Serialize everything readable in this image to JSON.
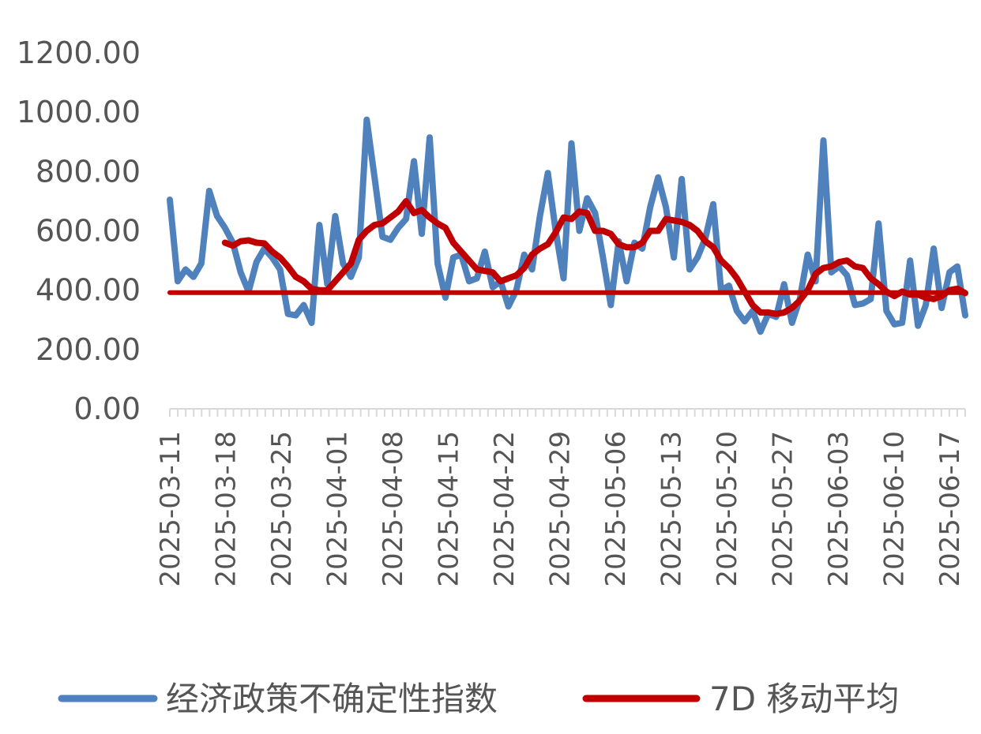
{
  "chart_data": {
    "type": "line",
    "title": "",
    "xlabel": "",
    "ylabel": "",
    "ylim": [
      0,
      1200
    ],
    "y_ticks": [
      "0.00",
      "200.00",
      "400.00",
      "600.00",
      "800.00",
      "1000.00",
      "1200.00"
    ],
    "x_ticks": [
      "2025-03-11",
      "2025-03-18",
      "2025-03-25",
      "2025-04-01",
      "2025-04-08",
      "2025-04-15",
      "2025-04-22",
      "2025-04-29",
      "2025-05-06",
      "2025-05-13",
      "2025-05-20",
      "2025-05-27",
      "2025-06-03",
      "2025-06-10",
      "2025-06-17"
    ],
    "x_start": "2025-03-11",
    "x_end": "2025-06-19",
    "grid": false,
    "legend_position": "bottom",
    "series": [
      {
        "name": "经济政策不确定性指数",
        "color": "#4F81BD",
        "values": [
          705,
          430,
          470,
          445,
          490,
          735,
          650,
          610,
          560,
          460,
          395,
          495,
          540,
          510,
          470,
          320,
          315,
          350,
          290,
          620,
          420,
          650,
          490,
          445,
          510,
          975,
          780,
          580,
          570,
          610,
          640,
          835,
          590,
          915,
          490,
          375,
          510,
          520,
          430,
          440,
          530,
          410,
          430,
          345,
          400,
          520,
          470,
          650,
          795,
          600,
          440,
          895,
          600,
          710,
          660,
          510,
          350,
          565,
          430,
          560,
          540,
          680,
          780,
          680,
          510,
          775,
          470,
          510,
          575,
          690,
          400,
          415,
          330,
          295,
          330,
          260,
          320,
          310,
          420,
          290,
          370,
          520,
          430,
          905,
          460,
          480,
          450,
          350,
          355,
          370,
          625,
          330,
          285,
          290,
          500,
          280,
          350,
          540,
          340,
          460,
          480,
          315
        ]
      },
      {
        "name": "7D 移动平均",
        "color": "#C00000",
        "values": [
          null,
          null,
          null,
          null,
          null,
          null,
          null,
          560,
          550,
          565,
          568,
          560,
          558,
          530,
          510,
          480,
          445,
          430,
          405,
          400,
          400,
          430,
          460,
          490,
          570,
          600,
          620,
          625,
          645,
          665,
          700,
          660,
          670,
          645,
          625,
          610,
          560,
          530,
          500,
          470,
          465,
          460,
          430,
          440,
          450,
          475,
          520,
          540,
          555,
          595,
          645,
          640,
          665,
          660,
          600,
          600,
          590,
          555,
          545,
          545,
          560,
          600,
          600,
          640,
          635,
          630,
          620,
          600,
          565,
          545,
          500,
          475,
          440,
          395,
          350,
          325,
          325,
          320,
          325,
          340,
          365,
          400,
          455,
          475,
          480,
          495,
          500,
          480,
          475,
          440,
          420,
          395,
          380,
          395,
          385,
          385,
          375,
          370,
          380,
          400,
          405,
          390
        ]
      },
      {
        "name": "",
        "color": "#C00000",
        "values": [
          392,
          392
        ]
      }
    ]
  }
}
